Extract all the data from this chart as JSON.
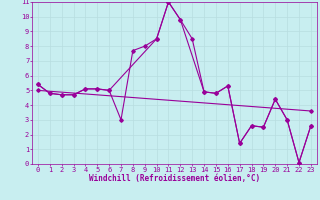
{
  "xlabel": "Windchill (Refroidissement éolien,°C)",
  "bg_color": "#c8eef0",
  "line_color": "#990099",
  "grid_color": "#b8dde0",
  "xlim": [
    -0.5,
    23.5
  ],
  "ylim": [
    0,
    11
  ],
  "xticks": [
    0,
    1,
    2,
    3,
    4,
    5,
    6,
    7,
    8,
    9,
    10,
    11,
    12,
    13,
    14,
    15,
    16,
    17,
    18,
    19,
    20,
    21,
    22,
    23
  ],
  "yticks": [
    0,
    1,
    2,
    3,
    4,
    5,
    6,
    7,
    8,
    9,
    10,
    11
  ],
  "line1_x": [
    0,
    1,
    2,
    3,
    4,
    5,
    6,
    7,
    8,
    9,
    10,
    11,
    12,
    13,
    14,
    15,
    16,
    17,
    18,
    19,
    20,
    21,
    22,
    23
  ],
  "line1_y": [
    5.4,
    4.8,
    4.7,
    4.7,
    5.1,
    5.1,
    5.0,
    3.0,
    7.7,
    8.0,
    8.5,
    11.0,
    9.8,
    8.5,
    4.9,
    4.8,
    5.3,
    1.4,
    2.6,
    2.5,
    4.4,
    3.0,
    0.1,
    2.6
  ],
  "line2_x": [
    0,
    1,
    2,
    3,
    4,
    5,
    6,
    10,
    11,
    12,
    14,
    15,
    16,
    17,
    18,
    19,
    20,
    21,
    22,
    23
  ],
  "line2_y": [
    5.4,
    4.8,
    4.7,
    4.7,
    5.1,
    5.1,
    5.0,
    8.5,
    11.0,
    9.8,
    4.9,
    4.8,
    5.3,
    1.4,
    2.6,
    2.5,
    4.4,
    3.0,
    0.1,
    2.6
  ],
  "line3_x": [
    0,
    23
  ],
  "line3_y": [
    5.0,
    3.6
  ],
  "marker": "D",
  "markersize": 1.8,
  "linewidth": 0.8,
  "tick_fontsize": 5,
  "xlabel_fontsize": 5.5
}
